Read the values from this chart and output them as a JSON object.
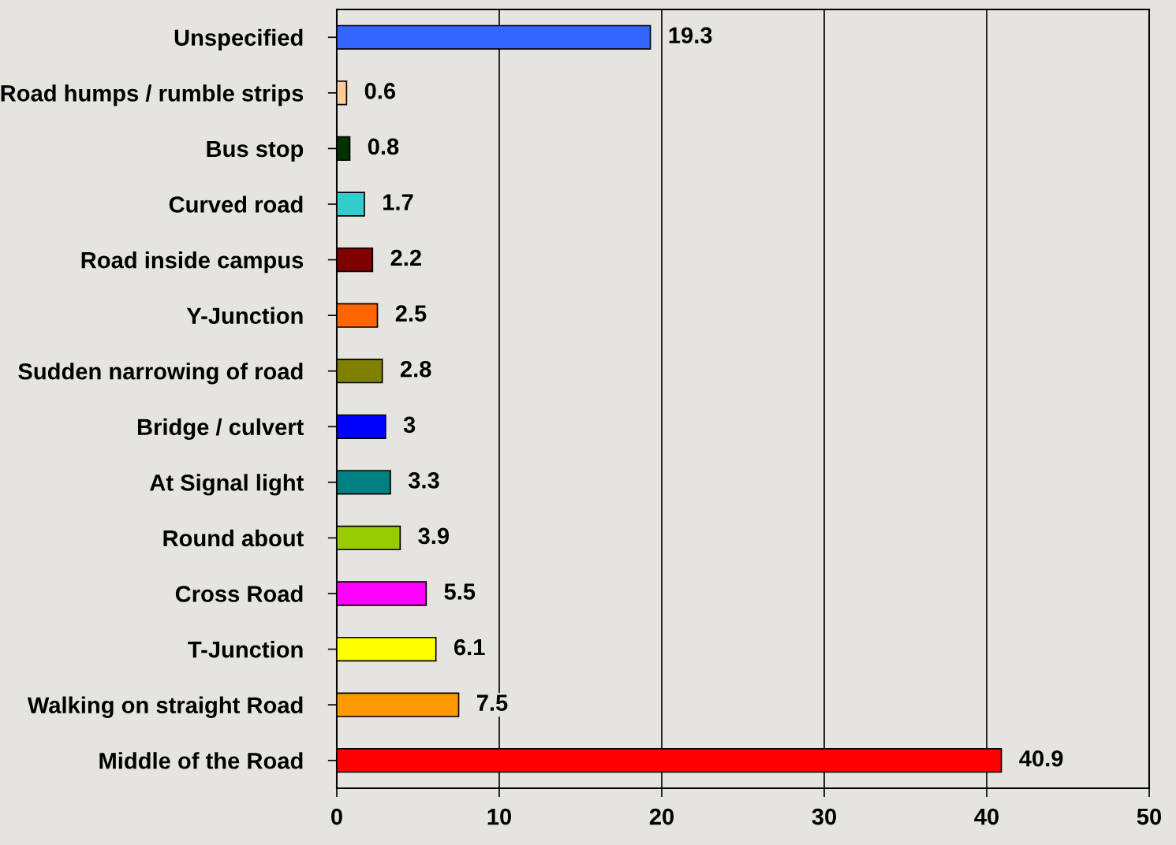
{
  "chart_data": {
    "type": "bar",
    "orientation": "horizontal",
    "categories": [
      "Unspecified",
      "Road humps / rumble strips",
      "Bus stop",
      "Curved road",
      "Road inside campus",
      "Y-Junction",
      "Sudden narrowing of road",
      "Bridge / culvert",
      "At Signal light",
      "Round about",
      "Cross Road",
      "T-Junction",
      "Walking on straight Road",
      "Middle of the Road"
    ],
    "values": [
      19.3,
      0.6,
      0.8,
      1.7,
      2.2,
      2.5,
      2.8,
      3,
      3.3,
      3.9,
      5.5,
      6.1,
      7.5,
      40.9
    ],
    "colors": [
      "#3366ff",
      "#ffcc99",
      "#003300",
      "#33cccc",
      "#800000",
      "#ff6600",
      "#808000",
      "#0000ff",
      "#008080",
      "#99cc00",
      "#ff00ff",
      "#ffff00",
      "#ff9900",
      "#ff0000"
    ],
    "xlim": [
      0,
      50
    ],
    "xticks": [
      0,
      10,
      20,
      30,
      40,
      50
    ],
    "grid": "x",
    "data_labels": true,
    "legend": false
  }
}
